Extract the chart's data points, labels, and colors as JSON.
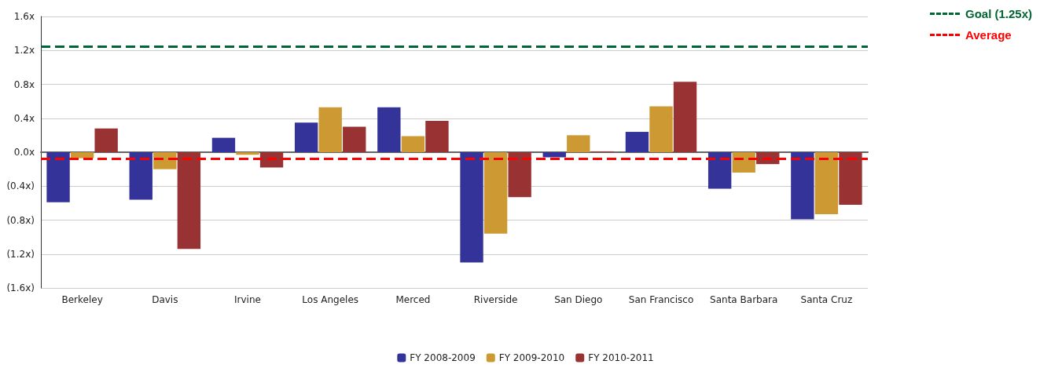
{
  "chart_data": {
    "type": "bar",
    "categories": [
      "Berkeley",
      "Davis",
      "Irvine",
      "Los Angeles",
      "Merced",
      "Riverside",
      "San Diego",
      "San Francisco",
      "Santa Barbara",
      "Santa Cruz"
    ],
    "series": [
      {
        "name": "FY 2008-2009",
        "color": "#333399",
        "values": [
          -0.59,
          -0.56,
          0.17,
          0.35,
          0.53,
          -1.3,
          -0.06,
          0.24,
          -0.43,
          -0.79
        ]
      },
      {
        "name": "FY 2009-2010",
        "color": "#cc9933",
        "values": [
          -0.07,
          -0.2,
          -0.03,
          0.53,
          0.19,
          -0.96,
          0.2,
          0.54,
          -0.24,
          -0.73
        ]
      },
      {
        "name": "FY 2010-2011",
        "color": "#993333",
        "values": [
          0.28,
          -1.14,
          -0.18,
          0.3,
          0.37,
          -0.53,
          0.01,
          0.83,
          -0.14,
          -0.62
        ]
      }
    ],
    "ylim": [
      -1.6,
      1.6
    ],
    "yticks": [
      {
        "value": -1.6,
        "label": "(1.6x)"
      },
      {
        "value": -1.2,
        "label": "(1.2x)"
      },
      {
        "value": -0.8,
        "label": "(0.8x)"
      },
      {
        "value": -0.4,
        "label": "(0.4x)"
      },
      {
        "value": 0,
        "label": "0.0x"
      },
      {
        "value": 0.4,
        "label": "0.4x"
      },
      {
        "value": 0.8,
        "label": "0.8x"
      },
      {
        "value": 1.2,
        "label": "1.2x"
      },
      {
        "value": 1.6,
        "label": "1.6x"
      }
    ],
    "ref_lines": [
      {
        "axis": "y",
        "value": 1.25,
        "label": "Goal (1.25x)",
        "color": "#006633",
        "line_style": "dashed"
      },
      {
        "axis": "y",
        "value": -0.08,
        "label": "Average",
        "color": "#ff0000",
        "line_style": "dashed"
      }
    ],
    "grid": "y",
    "legend": "bottom"
  }
}
